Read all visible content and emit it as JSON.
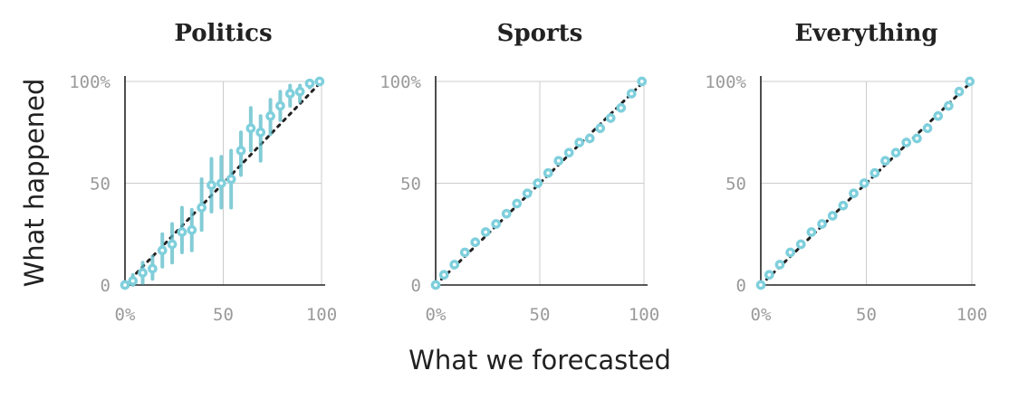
{
  "colors": {
    "points": "#7fcfdc",
    "errorbars": "#5bbcc9",
    "diagonal": "#222222"
  },
  "chart_data": {
    "type": "scatter",
    "xlabel": "What we forecasted",
    "ylabel": "What happened",
    "xlim": [
      0,
      100
    ],
    "ylim": [
      0,
      100
    ],
    "x_ticks": [
      "0%",
      "50",
      "100"
    ],
    "y_ticks": [
      "0",
      "50",
      "100%"
    ],
    "grid": true,
    "reference_line": "y = x (dotted)",
    "panels": [
      {
        "title": "Politics",
        "points": [
          {
            "x": 0,
            "y": 0,
            "lo": 0,
            "hi": 1
          },
          {
            "x": 4,
            "y": 2,
            "lo": 0,
            "hi": 5
          },
          {
            "x": 9,
            "y": 6,
            "lo": 1,
            "hi": 11
          },
          {
            "x": 14,
            "y": 8,
            "lo": 3,
            "hi": 14
          },
          {
            "x": 19,
            "y": 17,
            "lo": 9,
            "hi": 25
          },
          {
            "x": 24,
            "y": 20,
            "lo": 11,
            "hi": 30
          },
          {
            "x": 29,
            "y": 26,
            "lo": 16,
            "hi": 38
          },
          {
            "x": 34,
            "y": 27,
            "lo": 17,
            "hi": 37
          },
          {
            "x": 39,
            "y": 38,
            "lo": 27,
            "hi": 52
          },
          {
            "x": 44,
            "y": 49,
            "lo": 36,
            "hi": 62
          },
          {
            "x": 49,
            "y": 50,
            "lo": 38,
            "hi": 63
          },
          {
            "x": 54,
            "y": 52,
            "lo": 38,
            "hi": 66
          },
          {
            "x": 59,
            "y": 66,
            "lo": 54,
            "hi": 75
          },
          {
            "x": 64,
            "y": 77,
            "lo": 66,
            "hi": 87
          },
          {
            "x": 69,
            "y": 75,
            "lo": 61,
            "hi": 83
          },
          {
            "x": 74,
            "y": 83,
            "lo": 74,
            "hi": 91
          },
          {
            "x": 79,
            "y": 88,
            "lo": 81,
            "hi": 95
          },
          {
            "x": 84,
            "y": 94,
            "lo": 88,
            "hi": 98
          },
          {
            "x": 89,
            "y": 95,
            "lo": 90,
            "hi": 98
          },
          {
            "x": 94,
            "y": 99,
            "lo": 97,
            "hi": 100
          },
          {
            "x": 99,
            "y": 100,
            "lo": 99,
            "hi": 100
          }
        ]
      },
      {
        "title": "Sports",
        "points": [
          {
            "x": 0,
            "y": 0
          },
          {
            "x": 4,
            "y": 5
          },
          {
            "x": 9,
            "y": 10
          },
          {
            "x": 14,
            "y": 16
          },
          {
            "x": 19,
            "y": 21
          },
          {
            "x": 24,
            "y": 26
          },
          {
            "x": 29,
            "y": 30
          },
          {
            "x": 34,
            "y": 35
          },
          {
            "x": 39,
            "y": 40
          },
          {
            "x": 44,
            "y": 45
          },
          {
            "x": 49,
            "y": 50
          },
          {
            "x": 54,
            "y": 55
          },
          {
            "x": 59,
            "y": 61
          },
          {
            "x": 64,
            "y": 65
          },
          {
            "x": 69,
            "y": 70
          },
          {
            "x": 74,
            "y": 72
          },
          {
            "x": 79,
            "y": 77
          },
          {
            "x": 84,
            "y": 82
          },
          {
            "x": 89,
            "y": 87
          },
          {
            "x": 94,
            "y": 94
          },
          {
            "x": 99,
            "y": 100
          }
        ]
      },
      {
        "title": "Everything",
        "points": [
          {
            "x": 0,
            "y": 0
          },
          {
            "x": 4,
            "y": 5
          },
          {
            "x": 9,
            "y": 10
          },
          {
            "x": 14,
            "y": 16
          },
          {
            "x": 19,
            "y": 20
          },
          {
            "x": 24,
            "y": 26
          },
          {
            "x": 29,
            "y": 30
          },
          {
            "x": 34,
            "y": 34
          },
          {
            "x": 39,
            "y": 39
          },
          {
            "x": 44,
            "y": 45
          },
          {
            "x": 49,
            "y": 50
          },
          {
            "x": 54,
            "y": 55
          },
          {
            "x": 59,
            "y": 61
          },
          {
            "x": 64,
            "y": 65
          },
          {
            "x": 69,
            "y": 70
          },
          {
            "x": 74,
            "y": 72
          },
          {
            "x": 79,
            "y": 77
          },
          {
            "x": 84,
            "y": 83
          },
          {
            "x": 89,
            "y": 88
          },
          {
            "x": 94,
            "y": 95
          },
          {
            "x": 99,
            "y": 100
          }
        ]
      }
    ]
  }
}
